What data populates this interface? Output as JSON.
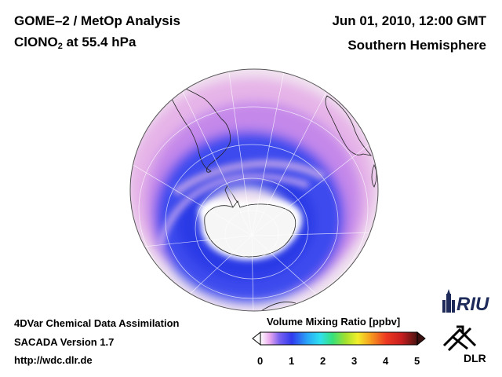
{
  "header": {
    "title_line1": "GOME–2 / MetOp Analysis",
    "species": "ClONO",
    "species_sub": "2",
    "species_suffix": " at 55.4 hPa",
    "datetime": "Jun 01, 2010, 12:00 GMT",
    "region": "Southern Hemisphere"
  },
  "footer": {
    "line1": "4DVar Chemical Data Assimilation",
    "line2": "SACADA Version 1.7",
    "url": "http://wdc.dlr.de"
  },
  "colorbar": {
    "title": "Volume Mixing Ratio [ppbv]",
    "ticks": [
      "0",
      "1",
      "2",
      "3",
      "4",
      "5"
    ],
    "min": 0,
    "max": 5,
    "colors": [
      "#ffffff",
      "#e9a8ee",
      "#5f5af2",
      "#2f3aee",
      "#29a6f7",
      "#2fe0f0",
      "#37e07a",
      "#9fe030",
      "#f2ee2a",
      "#f7a020",
      "#ee3a22",
      "#c81e1e",
      "#4a1212"
    ]
  },
  "map": {
    "projection": "orthographic-south-pole",
    "field_colors": {
      "background": "#f1e4f0",
      "light": "#e6b4e8",
      "medium": "#b87ae8",
      "strong": "#4c58ee",
      "deep": "#2f3fe8",
      "antarctica": "#ffffff"
    }
  },
  "logos": {
    "riu": "RIU",
    "dlr": "DLR"
  }
}
